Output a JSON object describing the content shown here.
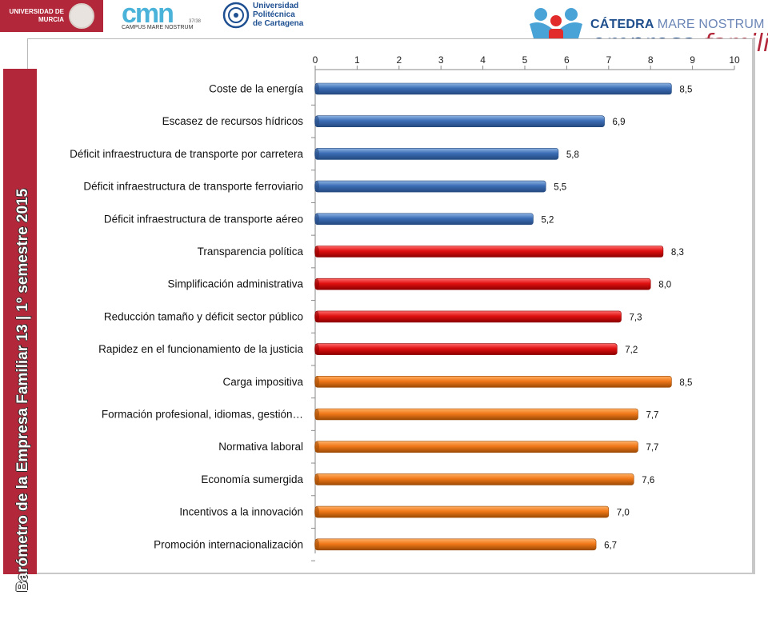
{
  "header": {
    "um_logo_text": "UNIVERSIDAD DE\nMURCIA",
    "cmn_logo_text": "cmn",
    "cmn_logo_subtext": "CAMPUS MARE NOSTRUM",
    "cmn_logo_number": "37/38",
    "upct_logo_text": "Universidad\nPolitécnica\nde Cartagena",
    "catedra_line1_a": "CÁTEDRA",
    "catedra_line1_b": "MARE NOSTRUM",
    "catedra_line2_a": "empresa",
    "catedra_line2_b": "familiar"
  },
  "sidebar": {
    "title": "Barómetro de la Empresa Familiar 13 | 1º semestre 2015",
    "color": "#b2283a"
  },
  "chart_data": {
    "type": "bar",
    "orientation": "horizontal",
    "xlim": [
      0,
      10
    ],
    "ticks": [
      "0",
      "1",
      "2",
      "3",
      "4",
      "5",
      "6",
      "7",
      "8",
      "9",
      "10"
    ],
    "axis_position": "top",
    "grid": false,
    "categories": [
      "Coste de la energía",
      "Escasez de recursos hídricos",
      "Déficit infraestructura de transporte por carretera",
      "Déficit infraestructura de transporte ferroviario",
      "Déficit infraestructura de transporte aéreo",
      "Transparencia política",
      "Simplificación administrativa",
      "Reducción tamaño y déficit sector público",
      "Rapidez en el funcionamiento de la justicia",
      "Carga impositiva",
      "Formación profesional, idiomas, gestión…",
      "Normativa laboral",
      "Economía sumergida",
      "Incentivos a la innovación",
      "Promoción internacionalización"
    ],
    "values": [
      8.5,
      6.9,
      5.8,
      5.5,
      5.2,
      8.3,
      8.0,
      7.3,
      7.2,
      8.5,
      7.7,
      7.7,
      7.6,
      7.0,
      6.7
    ],
    "value_labels": [
      "8,5",
      "6,9",
      "5,8",
      "5,5",
      "5,2",
      "8,3",
      "8,0",
      "7,3",
      "7,2",
      "8,5",
      "7,7",
      "7,7",
      "7,6",
      "7,0",
      "6,7"
    ],
    "groups": [
      "blue",
      "blue",
      "blue",
      "blue",
      "blue",
      "red",
      "red",
      "red",
      "red",
      "orange",
      "orange",
      "orange",
      "orange",
      "orange",
      "orange"
    ],
    "colors": {
      "blue": [
        "#8fb4e3",
        "#3b6db5",
        "#24497f"
      ],
      "red": [
        "#ff6b6b",
        "#e01010",
        "#8c0000"
      ],
      "orange": [
        "#ffb066",
        "#f07818",
        "#9c4a05"
      ]
    }
  }
}
